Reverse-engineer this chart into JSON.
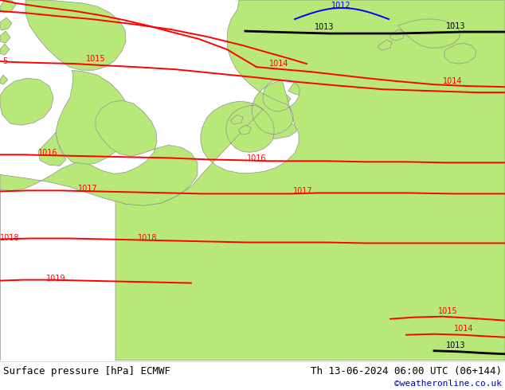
{
  "title_left": "Surface pressure [hPa] ECMWF",
  "title_right": "Th 13-06-2024 06:00 UTC (06+144)",
  "credit": "©weatheronline.co.uk",
  "bg_map_color": "#c8c8c8",
  "land_green_color": "#b8e878",
  "border_color": "#909090",
  "contour_red_color": "#ff0000",
  "contour_black_color": "#000000",
  "contour_blue_color": "#0000ff",
  "footer_bg": "#ffffff",
  "footer_text_color": "#000000",
  "footer_credit_color": "#0000cc",
  "label_fontsize": 7,
  "footer_fontsize": 9,
  "figwidth": 6.34,
  "figheight": 4.9,
  "dpi": 100
}
